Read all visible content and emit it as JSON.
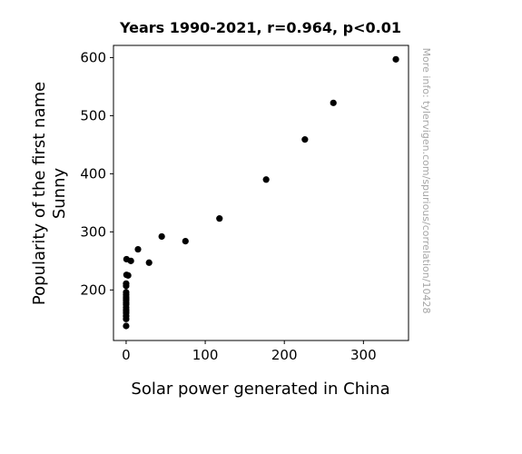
{
  "chart_data": {
    "type": "scatter",
    "title": "Years 1990-2021, r=0.964, p<0.01",
    "xlabel": "Solar power generated in China",
    "ylabel_lines": [
      "Popularity of the first name",
      "Sunny"
    ],
    "watermark": "More info: tylervigen.com/spurious/correlation/10428",
    "xlim": [
      -16,
      357
    ],
    "ylim": [
      113,
      621
    ],
    "xticks": [
      0,
      100,
      200,
      300
    ],
    "yticks": [
      200,
      300,
      400,
      500,
      600
    ],
    "marker_color": "#000000",
    "points": [
      {
        "x": 0.0,
        "y": 138
      },
      {
        "x": 0.0,
        "y": 150
      },
      {
        "x": 0.0,
        "y": 155
      },
      {
        "x": 0.0,
        "y": 160
      },
      {
        "x": 0.0,
        "y": 163
      },
      {
        "x": 0.0,
        "y": 166
      },
      {
        "x": 0.0,
        "y": 170
      },
      {
        "x": 0.0,
        "y": 175
      },
      {
        "x": 0.0,
        "y": 178
      },
      {
        "x": 0.0,
        "y": 182
      },
      {
        "x": 0.0,
        "y": 185
      },
      {
        "x": 0.0,
        "y": 188
      },
      {
        "x": 0.0,
        "y": 192
      },
      {
        "x": 0.0,
        "y": 196
      },
      {
        "x": 0.0,
        "y": 207
      },
      {
        "x": 0.0,
        "y": 211
      },
      {
        "x": 0.5,
        "y": 226
      },
      {
        "x": 0.5,
        "y": 253
      },
      {
        "x": 2.5,
        "y": 225
      },
      {
        "x": 6.0,
        "y": 250
      },
      {
        "x": 15.0,
        "y": 270
      },
      {
        "x": 29.0,
        "y": 247
      },
      {
        "x": 45.0,
        "y": 292
      },
      {
        "x": 75.0,
        "y": 284
      },
      {
        "x": 118.0,
        "y": 323
      },
      {
        "x": 177.0,
        "y": 390
      },
      {
        "x": 226.0,
        "y": 459
      },
      {
        "x": 262.0,
        "y": 522
      },
      {
        "x": 341.0,
        "y": 597
      }
    ]
  }
}
